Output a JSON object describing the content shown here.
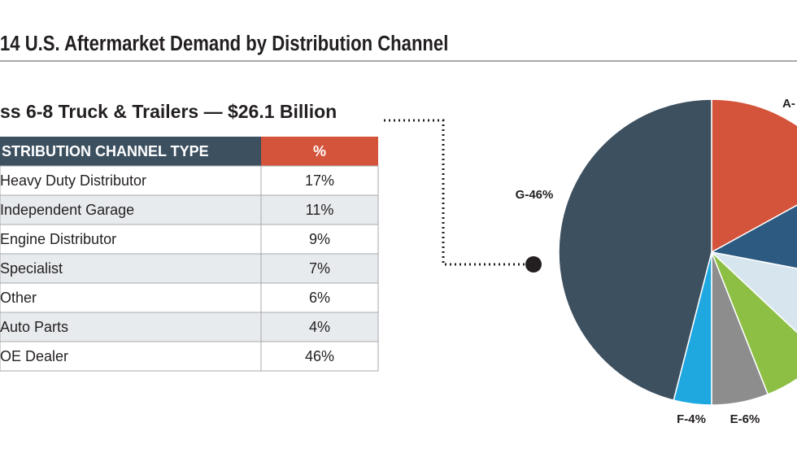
{
  "title": "14 U.S. Aftermarket Demand by Distribution Channel",
  "subtitle": "ss 6-8 Truck & Trailers — $26.1 Billion",
  "table": {
    "header": [
      "STRIBUTION CHANNEL TYPE",
      "%"
    ],
    "rows": [
      [
        "Heavy Duty Distributor",
        "17%"
      ],
      [
        "Independent Garage",
        "11%"
      ],
      [
        "Engine Distributor",
        "9%"
      ],
      [
        "Specialist",
        "7%"
      ],
      [
        "Other",
        "6%"
      ],
      [
        "Auto Parts",
        "4%"
      ],
      [
        "OE Dealer",
        "46%"
      ]
    ]
  },
  "chart_data": {
    "type": "pie",
    "values": [
      17,
      11,
      9,
      7,
      6,
      4,
      46
    ],
    "value_labels": [
      "A-",
      null,
      null,
      null,
      "E-6%",
      "F-4%",
      "G-46%"
    ],
    "colors": [
      "#d4533b",
      "#2c5a80",
      "#d7e6ee",
      "#8dbf44",
      "#8d8d8d",
      "#1fa8e0",
      "#3d5060"
    ]
  }
}
